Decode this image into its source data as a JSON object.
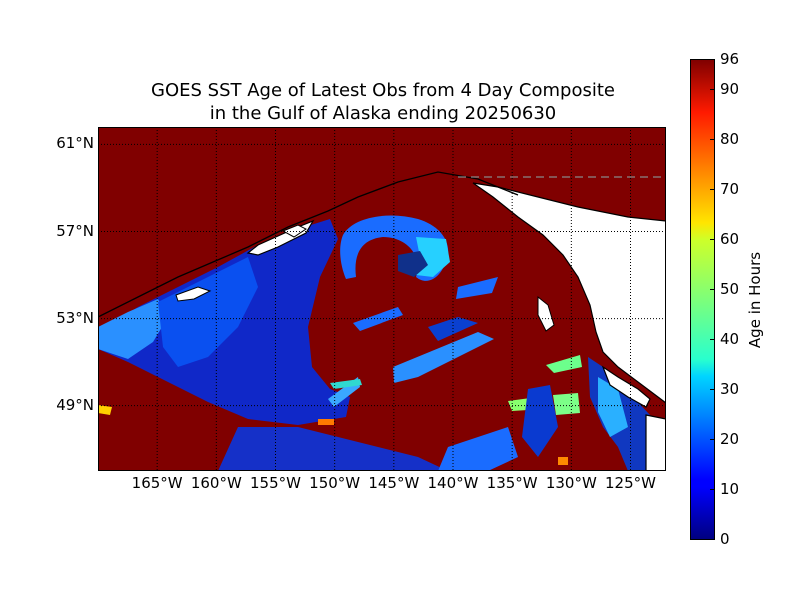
{
  "title": {
    "line1": "GOES SST Age of Latest Obs from 4 Day Composite",
    "line2": "in the Gulf of Alaska ending 20250630"
  },
  "map": {
    "lon_range": [
      -170,
      -122
    ],
    "lat_range": [
      46,
      61.8
    ],
    "lat_ticks": [
      {
        "value": 61,
        "label": "61°N"
      },
      {
        "value": 57,
        "label": "57°N"
      },
      {
        "value": 53,
        "label": "53°N"
      },
      {
        "value": 49,
        "label": "49°N"
      }
    ],
    "lon_ticks": [
      {
        "value": -165,
        "label": "165°W"
      },
      {
        "value": -160,
        "label": "160°W"
      },
      {
        "value": -155,
        "label": "155°W"
      },
      {
        "value": -150,
        "label": "150°W"
      },
      {
        "value": -145,
        "label": "145°W"
      },
      {
        "value": -140,
        "label": "140°W"
      },
      {
        "value": -135,
        "label": "135°W"
      },
      {
        "value": -130,
        "label": "130°W"
      },
      {
        "value": -125,
        "label": "125°W"
      }
    ],
    "colors": {
      "no_data": "#800000",
      "land": "#ffffff",
      "coastline": "#000000",
      "grid": "#000000"
    }
  },
  "colorbar": {
    "label": "Age in Hours",
    "range": [
      0,
      96
    ],
    "ticks": [
      {
        "value": 96,
        "label": "96"
      },
      {
        "value": 90,
        "label": "90"
      },
      {
        "value": 80,
        "label": "80"
      },
      {
        "value": 70,
        "label": "70"
      },
      {
        "value": 60,
        "label": "60"
      },
      {
        "value": 50,
        "label": "50"
      },
      {
        "value": 40,
        "label": "40"
      },
      {
        "value": 30,
        "label": "30"
      },
      {
        "value": 20,
        "label": "20"
      },
      {
        "value": 10,
        "label": "10"
      },
      {
        "value": 0,
        "label": "0"
      }
    ],
    "colormap": "jet"
  }
}
